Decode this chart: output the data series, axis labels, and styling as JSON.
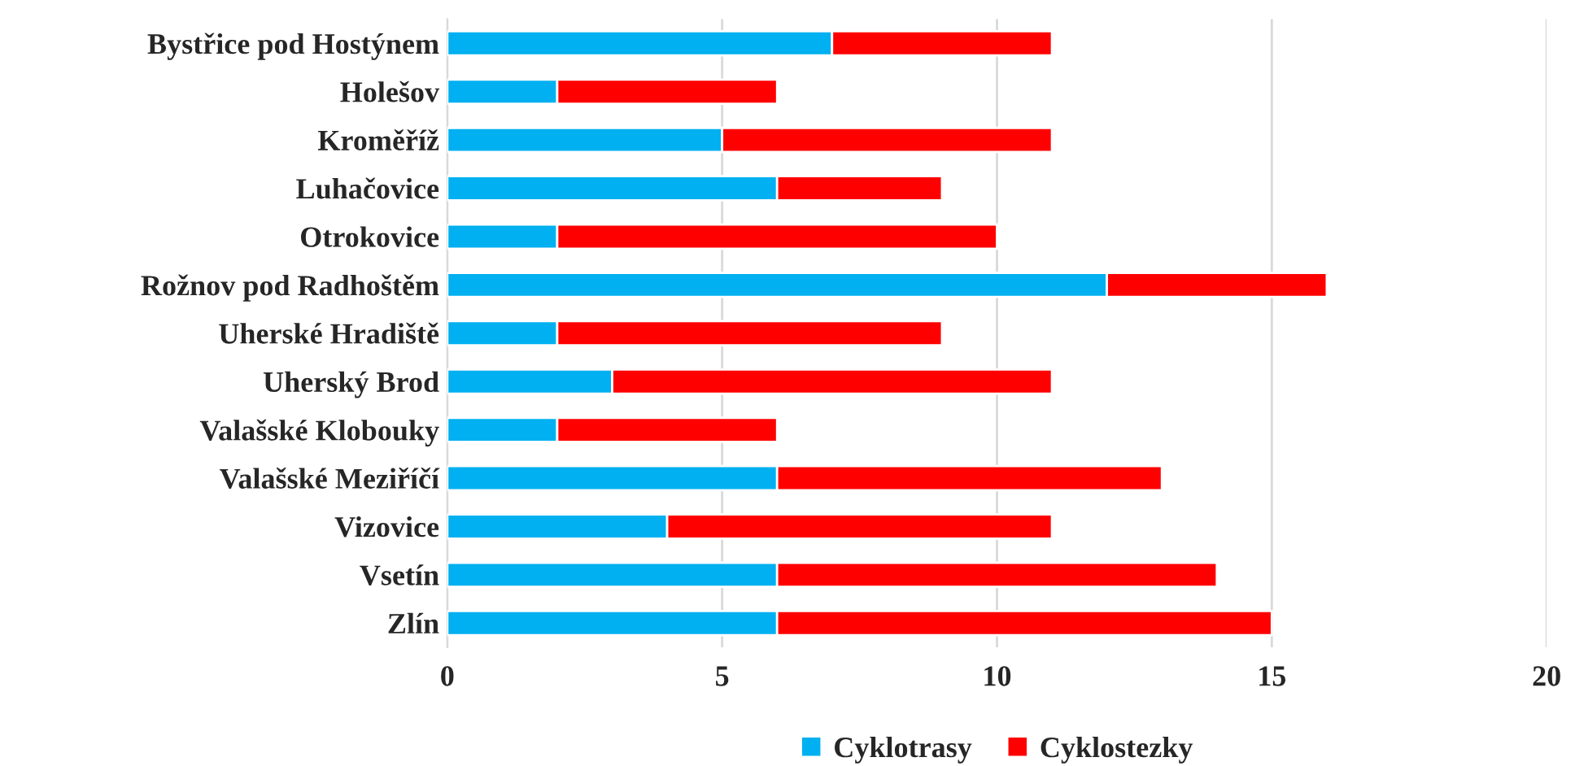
{
  "chart_data": {
    "type": "bar",
    "orientation": "horizontal",
    "stacked": true,
    "categories": [
      "Bystřice pod Hostýnem",
      "Holešov",
      "Kroměříž",
      "Luhačovice",
      "Otrokovice",
      "Rožnov pod Radhoštěm",
      "Uherské Hradiště",
      "Uherský Brod",
      "Valašské Klobouky",
      "Valašské Meziříčí",
      "Vizovice",
      "Vsetín",
      "Zlín"
    ],
    "series": [
      {
        "name": "Cyklotrasy",
        "color": "#00b0f0",
        "values": [
          7,
          2,
          5,
          6,
          2,
          12,
          2,
          3,
          2,
          6,
          4,
          6,
          6
        ]
      },
      {
        "name": "Cyklostezky",
        "color": "#ff0000",
        "values": [
          4,
          4,
          6,
          3,
          8,
          4,
          7,
          8,
          4,
          7,
          7,
          8,
          9
        ]
      }
    ],
    "xlim": [
      0,
      20
    ],
    "xticks": [
      0,
      5,
      10,
      15,
      20
    ],
    "grid": "x",
    "legend": "bottom"
  }
}
